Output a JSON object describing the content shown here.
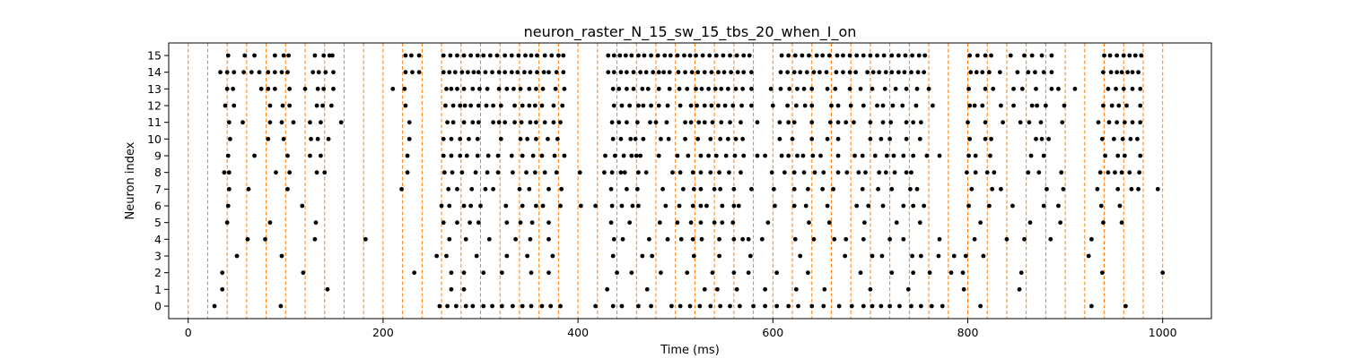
{
  "chart_data": {
    "type": "scatter",
    "title": "neuron_raster_N_15_sw_15_tbs_20_when_I_on",
    "xlabel": "Time (ms)",
    "ylabel": "Neuron index",
    "xlim": [
      -20,
      1050
    ],
    "ylim": [
      -0.75,
      15.75
    ],
    "xticks": [
      0,
      200,
      400,
      600,
      800,
      1000
    ],
    "yticks": [
      0,
      1,
      2,
      3,
      4,
      5,
      6,
      7,
      8,
      9,
      10,
      11,
      12,
      13,
      14,
      15
    ],
    "grid": false,
    "marker_color": "#000000",
    "vline_color": "#ff7f0e",
    "vline_times": [
      0,
      20,
      40,
      60,
      80,
      100,
      120,
      140,
      160,
      180,
      200,
      220,
      240,
      260,
      280,
      300,
      320,
      340,
      360,
      380,
      400,
      420,
      440,
      460,
      480,
      500,
      520,
      540,
      560,
      580,
      600,
      620,
      640,
      660,
      680,
      700,
      720,
      740,
      760,
      780,
      800,
      820,
      840,
      860,
      880,
      900,
      920,
      940,
      960,
      980,
      1000
    ],
    "spikes": {
      "0": [
        27,
        95,
        258,
        266,
        275,
        285,
        292,
        303,
        312,
        322,
        333,
        343,
        352,
        363,
        372,
        382,
        418,
        436,
        445,
        462,
        475,
        496,
        505,
        515,
        525,
        536,
        546,
        556,
        566,
        580,
        592,
        604,
        616,
        626,
        640,
        652,
        668,
        681,
        693,
        702,
        711,
        720,
        730,
        742,
        752,
        763,
        774,
        813,
        927,
        962
      ],
      "1": [
        35,
        143,
        270,
        283,
        430,
        471,
        530,
        543,
        563,
        592,
        624,
        653,
        700,
        739,
        796,
        853
      ],
      "2": [
        35,
        118,
        232,
        270,
        283,
        303,
        322,
        352,
        370,
        440,
        455,
        485,
        512,
        538,
        560,
        575,
        604,
        636,
        690,
        722,
        744,
        761,
        783,
        795,
        855,
        938,
        1000
      ],
      "3": [
        50,
        96,
        255,
        265,
        296,
        327,
        348,
        374,
        436,
        466,
        476,
        519,
        545,
        577,
        628,
        674,
        702,
        712,
        743,
        752,
        770,
        786,
        798,
        816,
        924
      ],
      "4": [
        61,
        79,
        130,
        182,
        268,
        285,
        309,
        336,
        351,
        370,
        437,
        446,
        473,
        492,
        506,
        518,
        527,
        545,
        560,
        569,
        575,
        589,
        623,
        642,
        663,
        675,
        693,
        720,
        734,
        771,
        807,
        840,
        858,
        885,
        927
      ],
      "5": [
        40,
        84,
        131,
        262,
        276,
        289,
        298,
        327,
        341,
        353,
        370,
        434,
        453,
        484,
        502,
        516,
        526,
        540,
        548,
        559,
        595,
        637,
        658,
        694,
        727,
        751,
        813,
        864,
        895,
        939,
        958
      ],
      "6": [
        41,
        117,
        260,
        268,
        283,
        290,
        300,
        326,
        343,
        357,
        364,
        382,
        403,
        418,
        435,
        445,
        456,
        462,
        490,
        504,
        518,
        526,
        532,
        548,
        560,
        565,
        602,
        622,
        634,
        656,
        686,
        698,
        713,
        734,
        744,
        755,
        801,
        822,
        846,
        878,
        893,
        937,
        956
      ],
      "7": [
        42,
        62,
        102,
        219,
        267,
        276,
        291,
        305,
        313,
        340,
        350,
        370,
        383,
        434,
        450,
        461,
        487,
        508,
        519,
        526,
        540,
        546,
        560,
        578,
        601,
        622,
        636,
        651,
        662,
        692,
        708,
        722,
        741,
        748,
        804,
        825,
        834,
        881,
        898,
        933,
        954,
        968,
        975,
        995
      ],
      "8": [
        37,
        42,
        90,
        104,
        132,
        140,
        225,
        263,
        271,
        281,
        295,
        307,
        318,
        333,
        347,
        356,
        366,
        378,
        402,
        427,
        435,
        444,
        448,
        462,
        470,
        497,
        505,
        518,
        526,
        536,
        545,
        555,
        567,
        599,
        612,
        622,
        632,
        643,
        652,
        667,
        676,
        688,
        695,
        709,
        716,
        725,
        737,
        742,
        799,
        808,
        820,
        827,
        862,
        873,
        896,
        936,
        944,
        951,
        958,
        966,
        976
      ],
      "9": [
        41,
        68,
        102,
        125,
        136,
        225,
        262,
        270,
        279,
        286,
        297,
        308,
        318,
        332,
        343,
        354,
        363,
        376,
        386,
        428,
        438,
        447,
        455,
        460,
        464,
        483,
        502,
        513,
        526,
        534,
        542,
        552,
        561,
        570,
        584,
        592,
        609,
        616,
        625,
        631,
        641,
        649,
        667,
        684,
        692,
        705,
        717,
        724,
        734,
        744,
        758,
        771,
        801,
        808,
        823,
        865,
        878,
        941,
        954,
        961,
        977
      ],
      "10": [
        43,
        82,
        98,
        126,
        133,
        144,
        227,
        262,
        270,
        279,
        288,
        297,
        321,
        341,
        348,
        357,
        369,
        379,
        436,
        444,
        454,
        459,
        467,
        485,
        493,
        510,
        523,
        536,
        546,
        554,
        562,
        569,
        607,
        620,
        640,
        656,
        667,
        700,
        711,
        720,
        737,
        751,
        802,
        818,
        824,
        870,
        876,
        883,
        938,
        950,
        959,
        967,
        974
      ],
      "11": [
        42,
        56,
        84,
        96,
        108,
        125,
        136,
        157,
        227,
        266,
        272,
        283,
        292,
        298,
        313,
        319,
        325,
        335,
        342,
        351,
        357,
        366,
        375,
        382,
        435,
        442,
        450,
        461,
        474,
        480,
        491,
        510,
        516,
        524,
        530,
        538,
        547,
        556,
        567,
        584,
        607,
        616,
        622,
        640,
        659,
        667,
        675,
        683,
        700,
        713,
        721,
        737,
        744,
        752,
        800,
        818,
        836,
        854,
        863,
        875,
        897,
        934,
        945,
        953,
        961,
        969,
        977
      ],
      "12": [
        38,
        47,
        84,
        97,
        104,
        132,
        138,
        147,
        223,
        264,
        272,
        279,
        284,
        290,
        298,
        306,
        313,
        321,
        335,
        343,
        350,
        356,
        363,
        375,
        384,
        437,
        445,
        453,
        462,
        467,
        475,
        483,
        492,
        505,
        516,
        522,
        530,
        537,
        544,
        551,
        559,
        568,
        578,
        600,
        615,
        624,
        633,
        640,
        660,
        667,
        680,
        693,
        707,
        713,
        723,
        733,
        747,
        764,
        802,
        807,
        815,
        834,
        847,
        866,
        871,
        880,
        899,
        939,
        948,
        955,
        963,
        977
      ],
      "13": [
        40,
        46,
        75,
        82,
        89,
        104,
        120,
        133,
        139,
        149,
        210,
        222,
        265,
        270,
        276,
        283,
        292,
        299,
        307,
        319,
        327,
        334,
        341,
        350,
        357,
        364,
        377,
        386,
        436,
        442,
        450,
        457,
        466,
        472,
        483,
        494,
        504,
        512,
        521,
        527,
        534,
        541,
        547,
        554,
        562,
        569,
        578,
        598,
        608,
        617,
        625,
        632,
        640,
        656,
        664,
        679,
        690,
        702,
        715,
        726,
        737,
        748,
        760,
        801,
        818,
        826,
        847,
        856,
        870,
        886,
        893,
        910,
        944,
        952,
        960,
        969,
        977
      ],
      "14": [
        33,
        40,
        47,
        57,
        65,
        73,
        82,
        89,
        96,
        102,
        128,
        134,
        141,
        149,
        223,
        230,
        237,
        262,
        268,
        274,
        281,
        287,
        293,
        298,
        305,
        312,
        319,
        325,
        332,
        338,
        345,
        351,
        358,
        365,
        370,
        378,
        385,
        431,
        437,
        444,
        450,
        457,
        464,
        470,
        477,
        483,
        488,
        494,
        503,
        510,
        517,
        523,
        530,
        537,
        544,
        550,
        557,
        564,
        570,
        578,
        608,
        615,
        622,
        628,
        635,
        642,
        648,
        655,
        665,
        672,
        679,
        685,
        697,
        703,
        709,
        716,
        722,
        729,
        735,
        742,
        749,
        755,
        803,
        809,
        815,
        822,
        833,
        851,
        862,
        869,
        878,
        886,
        939,
        947,
        953,
        958,
        964,
        969,
        975
      ],
      "15": [
        41,
        58,
        68,
        89,
        98,
        103,
        130,
        139,
        145,
        148,
        223,
        229,
        237,
        262,
        269,
        276,
        283,
        290,
        297,
        303,
        310,
        317,
        325,
        332,
        339,
        346,
        352,
        358,
        366,
        373,
        380,
        385,
        431,
        437,
        443,
        449,
        455,
        462,
        468,
        475,
        482,
        489,
        495,
        502,
        509,
        515,
        521,
        528,
        535,
        542,
        549,
        556,
        563,
        570,
        576,
        609,
        616,
        623,
        630,
        637,
        645,
        651,
        658,
        666,
        672,
        679,
        686,
        693,
        700,
        707,
        714,
        722,
        729,
        736,
        743,
        750,
        756,
        802,
        810,
        818,
        824,
        844,
        858,
        866,
        876,
        886,
        940,
        946,
        953,
        960,
        966,
        972,
        978
      ]
    }
  }
}
